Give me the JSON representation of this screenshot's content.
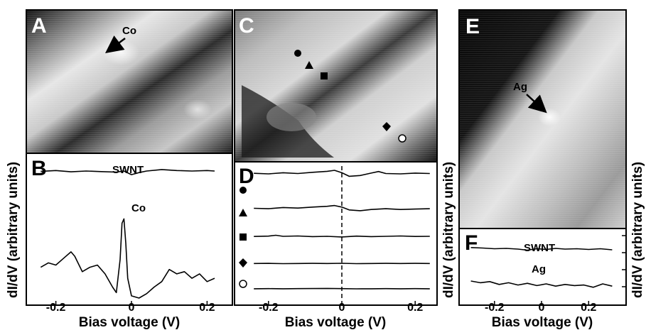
{
  "panels": {
    "A": {
      "letter": "A",
      "label": "Co"
    },
    "B": {
      "letter": "B",
      "labels": [
        "SWNT",
        "Co"
      ]
    },
    "C": {
      "letter": "C"
    },
    "D": {
      "letter": "D",
      "markers": [
        "filled-circle",
        "filled-triangle",
        "filled-square",
        "filled-diamond",
        "open-circle"
      ]
    },
    "E": {
      "letter": "E",
      "label": "Ag"
    },
    "F": {
      "letter": "F",
      "labels": [
        "SWNT",
        "Ag"
      ]
    }
  },
  "axes": {
    "ylabel": "dI/dV (arbitrary units)",
    "xlabel": "Bias voltage (V)",
    "ticks_B": [
      "-0.2",
      "0",
      "0.2"
    ],
    "ticks_D": [
      "-0.2",
      "0",
      "0.2"
    ],
    "ticks_F": [
      "-0.2",
      "0",
      "0.2"
    ]
  },
  "colors": {
    "ink": "#000000",
    "background": "#ffffff"
  },
  "chart_data": [
    {
      "panel": "B",
      "type": "line",
      "xlabel": "Bias voltage (V)",
      "ylabel": "dI/dV (arbitrary units)",
      "xlim": [
        -0.25,
        0.25
      ],
      "series": [
        {
          "name": "SWNT",
          "x": [
            -0.24,
            -0.2,
            -0.16,
            -0.12,
            -0.08,
            -0.04,
            -0.02,
            0,
            0.02,
            0.04,
            0.08,
            0.12,
            0.16,
            0.2,
            0.22
          ],
          "y": [
            0.85,
            0.88,
            0.83,
            0.86,
            0.84,
            0.82,
            0.86,
            0.72,
            0.8,
            0.86,
            0.92,
            0.88,
            0.86,
            0.88,
            0.86
          ]
        },
        {
          "name": "Co",
          "x": [
            -0.24,
            -0.22,
            -0.2,
            -0.18,
            -0.16,
            -0.15,
            -0.13,
            -0.11,
            -0.09,
            -0.07,
            -0.05,
            -0.04,
            -0.03,
            -0.025,
            -0.02,
            -0.015,
            -0.01,
            0,
            0.02,
            0.04,
            0.06,
            0.08,
            0.1,
            0.12,
            0.14,
            0.16,
            0.18,
            0.2,
            0.22
          ],
          "y": [
            0.28,
            0.32,
            0.3,
            0.36,
            0.42,
            0.38,
            0.24,
            0.28,
            0.3,
            0.22,
            0.1,
            0.05,
            0.35,
            0.68,
            0.72,
            0.5,
            0.18,
            0.02,
            0.0,
            0.04,
            0.1,
            0.15,
            0.26,
            0.22,
            0.24,
            0.18,
            0.22,
            0.15,
            0.18
          ]
        }
      ]
    },
    {
      "panel": "D",
      "type": "line",
      "xlabel": "Bias voltage (V)",
      "ylabel": "dI/dV (arbitrary units)",
      "xlim": [
        -0.25,
        0.25
      ],
      "vline_x": 0,
      "series": [
        {
          "name": "filled-circle",
          "x": [
            -0.24,
            -0.2,
            -0.16,
            -0.12,
            -0.08,
            -0.04,
            -0.02,
            0,
            0.02,
            0.05,
            0.08,
            0.1,
            0.12,
            0.16,
            0.2,
            0.24
          ],
          "y": [
            0.85,
            0.82,
            0.88,
            0.84,
            0.9,
            0.95,
            1.0,
            0.88,
            0.7,
            0.74,
            0.86,
            0.94,
            0.84,
            0.82,
            0.86,
            0.84
          ]
        },
        {
          "name": "filled-triangle",
          "x": [
            -0.24,
            -0.2,
            -0.16,
            -0.12,
            -0.08,
            -0.04,
            -0.02,
            0,
            0.02,
            0.05,
            0.08,
            0.12,
            0.16,
            0.2,
            0.24
          ],
          "y": [
            0.66,
            0.64,
            0.7,
            0.67,
            0.72,
            0.76,
            0.8,
            0.72,
            0.58,
            0.54,
            0.6,
            0.64,
            0.6,
            0.62,
            0.64
          ]
        },
        {
          "name": "filled-square",
          "x": [
            -0.24,
            -0.2,
            -0.18,
            -0.16,
            -0.12,
            -0.08,
            -0.04,
            0,
            0.04,
            0.08,
            0.12,
            0.16,
            0.2,
            0.24
          ],
          "y": [
            0.45,
            0.47,
            0.52,
            0.46,
            0.48,
            0.44,
            0.46,
            0.42,
            0.47,
            0.44,
            0.46,
            0.48,
            0.45,
            0.46
          ]
        },
        {
          "name": "filled-diamond",
          "x": [
            -0.24,
            -0.2,
            -0.16,
            -0.12,
            -0.08,
            -0.04,
            0,
            0.04,
            0.08,
            0.12,
            0.16,
            0.2,
            0.24
          ],
          "y": [
            0.26,
            0.27,
            0.25,
            0.26,
            0.27,
            0.26,
            0.28,
            0.25,
            0.26,
            0.27,
            0.26,
            0.27,
            0.26
          ]
        },
        {
          "name": "open-circle",
          "x": [
            -0.24,
            -0.2,
            -0.16,
            -0.12,
            -0.08,
            -0.04,
            0,
            0.04,
            0.08,
            0.12,
            0.16,
            0.2,
            0.24
          ],
          "y": [
            0.07,
            0.08,
            0.07,
            0.08,
            0.09,
            0.1,
            0.08,
            0.06,
            0.07,
            0.08,
            0.07,
            0.08,
            0.07
          ]
        }
      ]
    },
    {
      "panel": "F",
      "type": "line",
      "xlabel": "Bias voltage (V)",
      "ylabel": "dI/dV (arbitrary units)",
      "xlim": [
        -0.32,
        0.32
      ],
      "series": [
        {
          "name": "SWNT",
          "x": [
            -0.3,
            -0.25,
            -0.2,
            -0.15,
            -0.1,
            -0.06,
            -0.02,
            0.02,
            0.06,
            0.1,
            0.15,
            0.2,
            0.25,
            0.3
          ],
          "y": [
            0.85,
            0.82,
            0.78,
            0.8,
            0.76,
            0.7,
            0.78,
            0.74,
            0.8,
            0.76,
            0.78,
            0.74,
            0.78,
            0.72
          ]
        },
        {
          "name": "Ag",
          "x": [
            -0.3,
            -0.26,
            -0.22,
            -0.18,
            -0.14,
            -0.1,
            -0.06,
            -0.02,
            0.02,
            0.06,
            0.1,
            0.14,
            0.18,
            0.22,
            0.26,
            0.3
          ],
          "y": [
            0.4,
            0.34,
            0.38,
            0.28,
            0.34,
            0.26,
            0.32,
            0.24,
            0.3,
            0.22,
            0.28,
            0.24,
            0.26,
            0.18,
            0.3,
            0.22
          ]
        }
      ]
    }
  ]
}
